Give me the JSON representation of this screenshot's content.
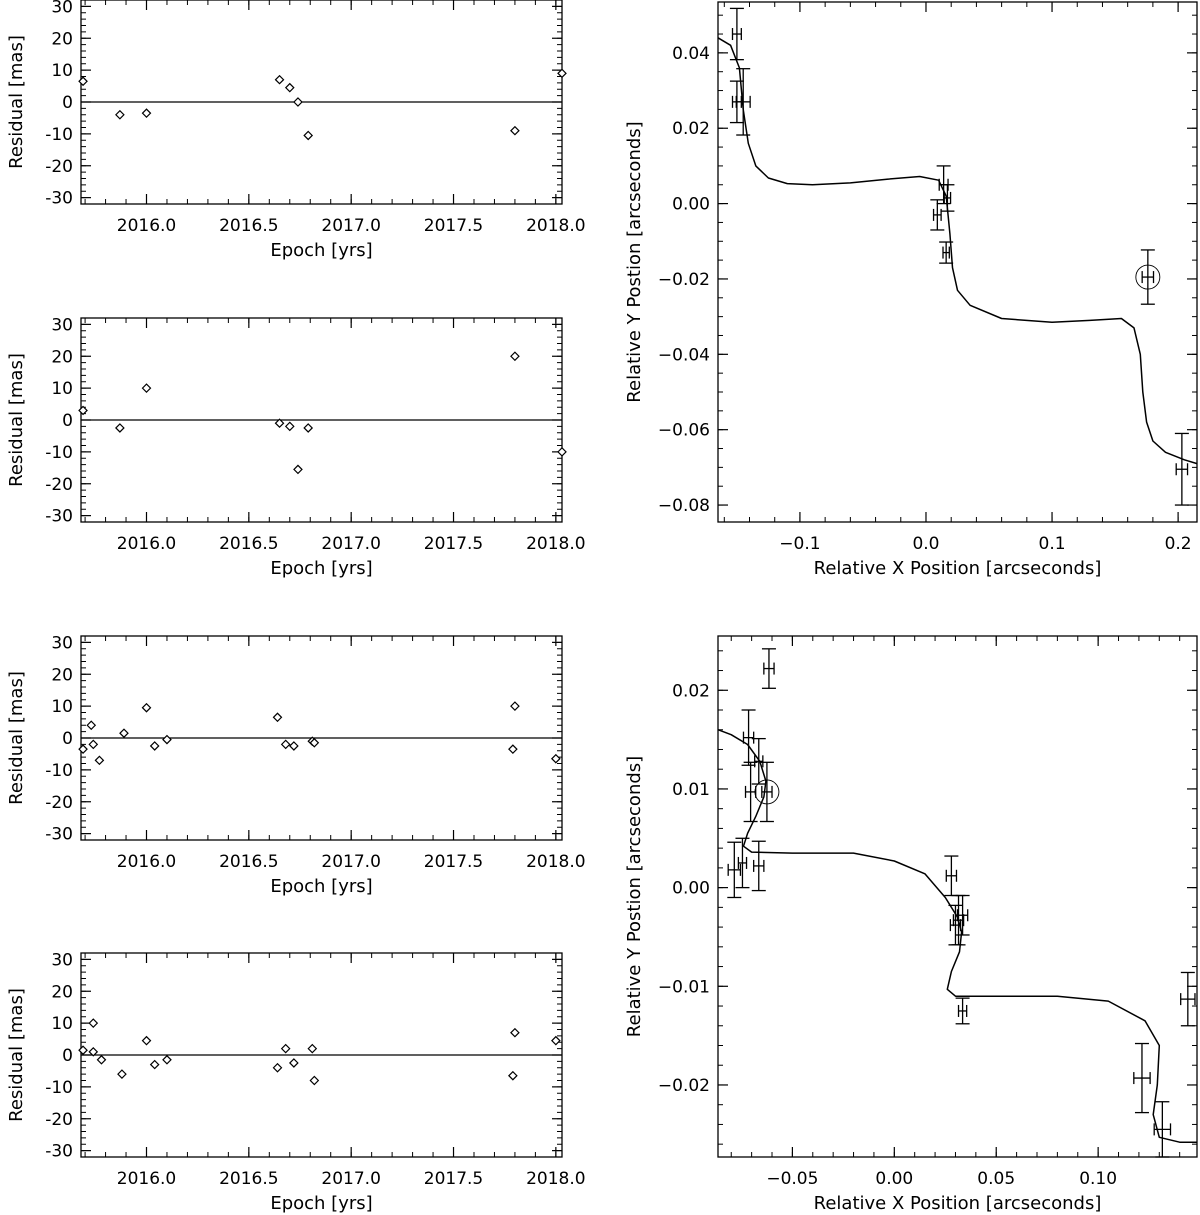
{
  "chart_data": [
    {
      "id": "res-a-top",
      "type": "scatter",
      "xlabel": "Epoch [yrs]",
      "ylabel": "Residual  [mas]",
      "xlim": [
        2015.68,
        2018.03
      ],
      "ylim": [
        -32,
        32
      ],
      "xticks": [
        "2016.0",
        "2016.5",
        "2017.0",
        "2017.5",
        "2018.0"
      ],
      "yticks": [
        "30",
        "20",
        "10",
        "0",
        "-10",
        "-20",
        "-30"
      ],
      "zero_line": true,
      "marker": "diamond",
      "points": [
        [
          2015.69,
          6.5
        ],
        [
          2015.87,
          -4
        ],
        [
          2016.0,
          -3.5
        ],
        [
          2016.65,
          7
        ],
        [
          2016.7,
          4.5
        ],
        [
          2016.74,
          0
        ],
        [
          2016.79,
          -10.5
        ],
        [
          2017.8,
          -9
        ],
        [
          2018.03,
          9
        ]
      ]
    },
    {
      "id": "res-a-bottom",
      "type": "scatter",
      "xlabel": "Epoch [yrs]",
      "ylabel": "Residual  [mas]",
      "xlim": [
        2015.68,
        2018.03
      ],
      "ylim": [
        -32,
        32
      ],
      "xticks": [
        "2016.0",
        "2016.5",
        "2017.0",
        "2017.5",
        "2018.0"
      ],
      "yticks": [
        "30",
        "20",
        "10",
        "0",
        "-10",
        "-20",
        "-30"
      ],
      "zero_line": true,
      "marker": "diamond",
      "points": [
        [
          2015.69,
          3
        ],
        [
          2015.87,
          -2.5
        ],
        [
          2016.0,
          10
        ],
        [
          2016.65,
          -1
        ],
        [
          2016.7,
          -2
        ],
        [
          2016.74,
          -15.5
        ],
        [
          2016.79,
          -2.5
        ],
        [
          2017.8,
          20
        ],
        [
          2018.03,
          -10
        ]
      ]
    },
    {
      "id": "res-b-top",
      "type": "scatter",
      "xlabel": "Epoch [yrs]",
      "ylabel": "Residual  [mas]",
      "xlim": [
        2015.68,
        2018.03
      ],
      "ylim": [
        -32,
        32
      ],
      "xticks": [
        "2016.0",
        "2016.5",
        "2017.0",
        "2017.5",
        "2018.0"
      ],
      "yticks": [
        "30",
        "20",
        "10",
        "0",
        "-10",
        "-20",
        "-30"
      ],
      "zero_line": true,
      "marker": "diamond",
      "points": [
        [
          2015.69,
          -3.5
        ],
        [
          2015.73,
          4
        ],
        [
          2015.74,
          -2
        ],
        [
          2015.77,
          -7
        ],
        [
          2015.89,
          1.5
        ],
        [
          2016.0,
          9.5
        ],
        [
          2016.04,
          -2.5
        ],
        [
          2016.1,
          -0.5
        ],
        [
          2016.64,
          6.5
        ],
        [
          2016.68,
          -2
        ],
        [
          2016.72,
          -2.5
        ],
        [
          2016.81,
          -1
        ],
        [
          2016.82,
          -1.5
        ],
        [
          2017.79,
          -3.5
        ],
        [
          2017.8,
          10
        ],
        [
          2018.0,
          -6.5
        ]
      ]
    },
    {
      "id": "res-b-bottom",
      "type": "scatter",
      "xlabel": "Epoch [yrs]",
      "ylabel": "Residual  [mas]",
      "xlim": [
        2015.68,
        2018.03
      ],
      "ylim": [
        -32,
        32
      ],
      "xticks": [
        "2016.0",
        "2016.5",
        "2017.0",
        "2017.5",
        "2018.0"
      ],
      "yticks": [
        "30",
        "20",
        "10",
        "0",
        "-10",
        "-20",
        "-30"
      ],
      "zero_line": true,
      "marker": "diamond",
      "points": [
        [
          2015.69,
          1.5
        ],
        [
          2015.74,
          10
        ],
        [
          2015.74,
          1
        ],
        [
          2015.78,
          -1.5
        ],
        [
          2015.88,
          -6
        ],
        [
          2016.0,
          4.5
        ],
        [
          2016.04,
          -3
        ],
        [
          2016.1,
          -1.5
        ],
        [
          2016.64,
          -4
        ],
        [
          2016.68,
          2
        ],
        [
          2016.72,
          -2.5
        ],
        [
          2016.81,
          2
        ],
        [
          2016.82,
          -8
        ],
        [
          2017.79,
          -6.5
        ],
        [
          2017.8,
          7
        ],
        [
          2018.0,
          4.5
        ]
      ]
    },
    {
      "id": "orbit-a",
      "type": "scatter",
      "xlabel": "Relative X Position [arcseconds]",
      "ylabel": "Relative Y Postion [arcseconds]",
      "xlim": [
        -0.165,
        0.215
      ],
      "ylim": [
        -0.0845,
        0.0535
      ],
      "xticks": [
        [
          -0.1,
          "−0.1"
        ],
        [
          0.0,
          "0.0"
        ],
        [
          0.1,
          "0.1"
        ],
        [
          0.2,
          "0.2"
        ]
      ],
      "yticks": [
        [
          0.04,
          "0.04"
        ],
        [
          0.02,
          "0.02"
        ],
        [
          0.0,
          "0.00"
        ],
        [
          -0.02,
          "−0.02"
        ],
        [
          -0.04,
          "−0.04"
        ],
        [
          -0.06,
          "−0.06"
        ],
        [
          -0.08,
          "−0.08"
        ]
      ],
      "model_curve": [
        [
          -0.165,
          0.044
        ],
        [
          -0.155,
          0.042
        ],
        [
          -0.148,
          0.036
        ],
        [
          -0.145,
          0.025
        ],
        [
          -0.141,
          0.016
        ],
        [
          -0.135,
          0.01
        ],
        [
          -0.125,
          0.0068
        ],
        [
          -0.11,
          0.0053
        ],
        [
          -0.09,
          0.005
        ],
        [
          -0.06,
          0.0055
        ],
        [
          -0.03,
          0.0065
        ],
        [
          -0.005,
          0.0072
        ],
        [
          0.01,
          0.0062
        ],
        [
          0.016,
          0.002
        ],
        [
          0.019,
          -0.008
        ],
        [
          0.021,
          -0.017
        ],
        [
          0.025,
          -0.023
        ],
        [
          0.035,
          -0.027
        ],
        [
          0.06,
          -0.0305
        ],
        [
          0.1,
          -0.0315
        ],
        [
          0.13,
          -0.031
        ],
        [
          0.155,
          -0.0305
        ],
        [
          0.165,
          -0.033
        ],
        [
          0.17,
          -0.04
        ],
        [
          0.172,
          -0.05
        ],
        [
          0.175,
          -0.058
        ],
        [
          0.18,
          -0.063
        ],
        [
          0.19,
          -0.066
        ],
        [
          0.205,
          -0.068
        ],
        [
          0.215,
          -0.069
        ]
      ],
      "points": [
        {
          "x": -0.15,
          "y": 0.045,
          "xerr": 0.0035,
          "yerr": 0.0068
        },
        {
          "x": -0.15,
          "y": 0.027,
          "xerr": 0.0035,
          "yerr": 0.0055
        },
        {
          "x": -0.145,
          "y": 0.027,
          "xerr": 0.0055,
          "yerr": 0.0088
        },
        {
          "x": 0.009,
          "y": -0.003,
          "xerr": 0.003,
          "yerr": 0.004
        },
        {
          "x": 0.014,
          "y": 0.005,
          "xerr": 0.0035,
          "yerr": 0.005
        },
        {
          "x": 0.017,
          "y": 0.0015,
          "xerr": 0.0025,
          "yerr": 0.0035
        },
        {
          "x": 0.016,
          "y": -0.013,
          "xerr": 0.0025,
          "yerr": 0.0028
        },
        {
          "x": 0.176,
          "y": -0.0195,
          "xerr": 0.0045,
          "yerr": 0.0072,
          "circled": true
        },
        {
          "x": 0.203,
          "y": -0.0705,
          "xerr": 0.0045,
          "yerr": 0.0095
        }
      ]
    },
    {
      "id": "orbit-b",
      "type": "scatter",
      "xlabel": "Relative X Position [arcseconds]",
      "ylabel": "Relative Y Postion [arcseconds]",
      "xlim": [
        -0.0865,
        0.1485
      ],
      "ylim": [
        -0.0273,
        0.0255
      ],
      "xticks": [
        [
          -0.05,
          "−0.05"
        ],
        [
          0.0,
          "0.00"
        ],
        [
          0.05,
          "0.05"
        ],
        [
          0.1,
          "0.10"
        ]
      ],
      "yticks": [
        [
          0.02,
          "0.02"
        ],
        [
          0.01,
          "0.01"
        ],
        [
          0.0,
          "0.00"
        ],
        [
          -0.01,
          "−0.01"
        ],
        [
          -0.02,
          "−0.02"
        ]
      ],
      "model_curve": [
        [
          -0.0865,
          0.016
        ],
        [
          -0.08,
          0.0155
        ],
        [
          -0.072,
          0.0145
        ],
        [
          -0.066,
          0.0128
        ],
        [
          -0.063,
          0.0108
        ],
        [
          -0.064,
          0.0092
        ],
        [
          -0.068,
          0.0072
        ],
        [
          -0.072,
          0.0055
        ],
        [
          -0.074,
          0.0042
        ],
        [
          -0.07,
          0.0036
        ],
        [
          -0.05,
          0.0035
        ],
        [
          -0.02,
          0.0035
        ],
        [
          0.0,
          0.0027
        ],
        [
          0.015,
          0.0014
        ],
        [
          0.025,
          -0.001
        ],
        [
          0.031,
          -0.003
        ],
        [
          0.033,
          -0.0045
        ],
        [
          0.032,
          -0.0065
        ],
        [
          0.028,
          -0.0085
        ],
        [
          0.026,
          -0.0103
        ],
        [
          0.03,
          -0.011
        ],
        [
          0.05,
          -0.011
        ],
        [
          0.08,
          -0.011
        ],
        [
          0.105,
          -0.0115
        ],
        [
          0.123,
          -0.0135
        ],
        [
          0.13,
          -0.016
        ],
        [
          0.129,
          -0.02
        ],
        [
          0.127,
          -0.023
        ],
        [
          0.13,
          -0.0253
        ],
        [
          0.14,
          -0.0258
        ],
        [
          0.1485,
          -0.0258
        ]
      ],
      "points": [
        {
          "x": -0.0615,
          "y": 0.0222,
          "xerr": 0.0025,
          "yerr": 0.002
        },
        {
          "x": -0.0715,
          "y": 0.0152,
          "xerr": 0.0025,
          "yerr": 0.0028
        },
        {
          "x": -0.0665,
          "y": 0.0128,
          "xerr": 0.002,
          "yerr": 0.0023
        },
        {
          "x": -0.0705,
          "y": 0.0097,
          "xerr": 0.0025,
          "yerr": 0.003
        },
        {
          "x": -0.0625,
          "y": 0.0097,
          "xerr": 0.0025,
          "yerr": 0.003,
          "circled": true
        },
        {
          "x": -0.0785,
          "y": 0.0018,
          "xerr": 0.003,
          "yerr": 0.0028
        },
        {
          "x": -0.0745,
          "y": 0.0025,
          "xerr": 0.002,
          "yerr": 0.0025
        },
        {
          "x": -0.0665,
          "y": 0.0022,
          "xerr": 0.0025,
          "yerr": 0.0025
        },
        {
          "x": 0.028,
          "y": 0.0012,
          "xerr": 0.0025,
          "yerr": 0.002
        },
        {
          "x": 0.0315,
          "y": -0.0033,
          "xerr": 0.0025,
          "yerr": 0.0025
        },
        {
          "x": 0.0335,
          "y": -0.0028,
          "xerr": 0.0025,
          "yerr": 0.002
        },
        {
          "x": 0.03,
          "y": -0.0038,
          "xerr": 0.0025,
          "yerr": 0.002
        },
        {
          "x": 0.0335,
          "y": -0.0125,
          "xerr": 0.002,
          "yerr": 0.0013
        },
        {
          "x": 0.1215,
          "y": -0.0193,
          "xerr": 0.004,
          "yerr": 0.0035
        },
        {
          "x": 0.1315,
          "y": -0.0245,
          "xerr": 0.004,
          "yerr": 0.0028
        },
        {
          "x": 0.144,
          "y": -0.0113,
          "xerr": 0.0035,
          "yerr": 0.0027
        }
      ]
    }
  ]
}
